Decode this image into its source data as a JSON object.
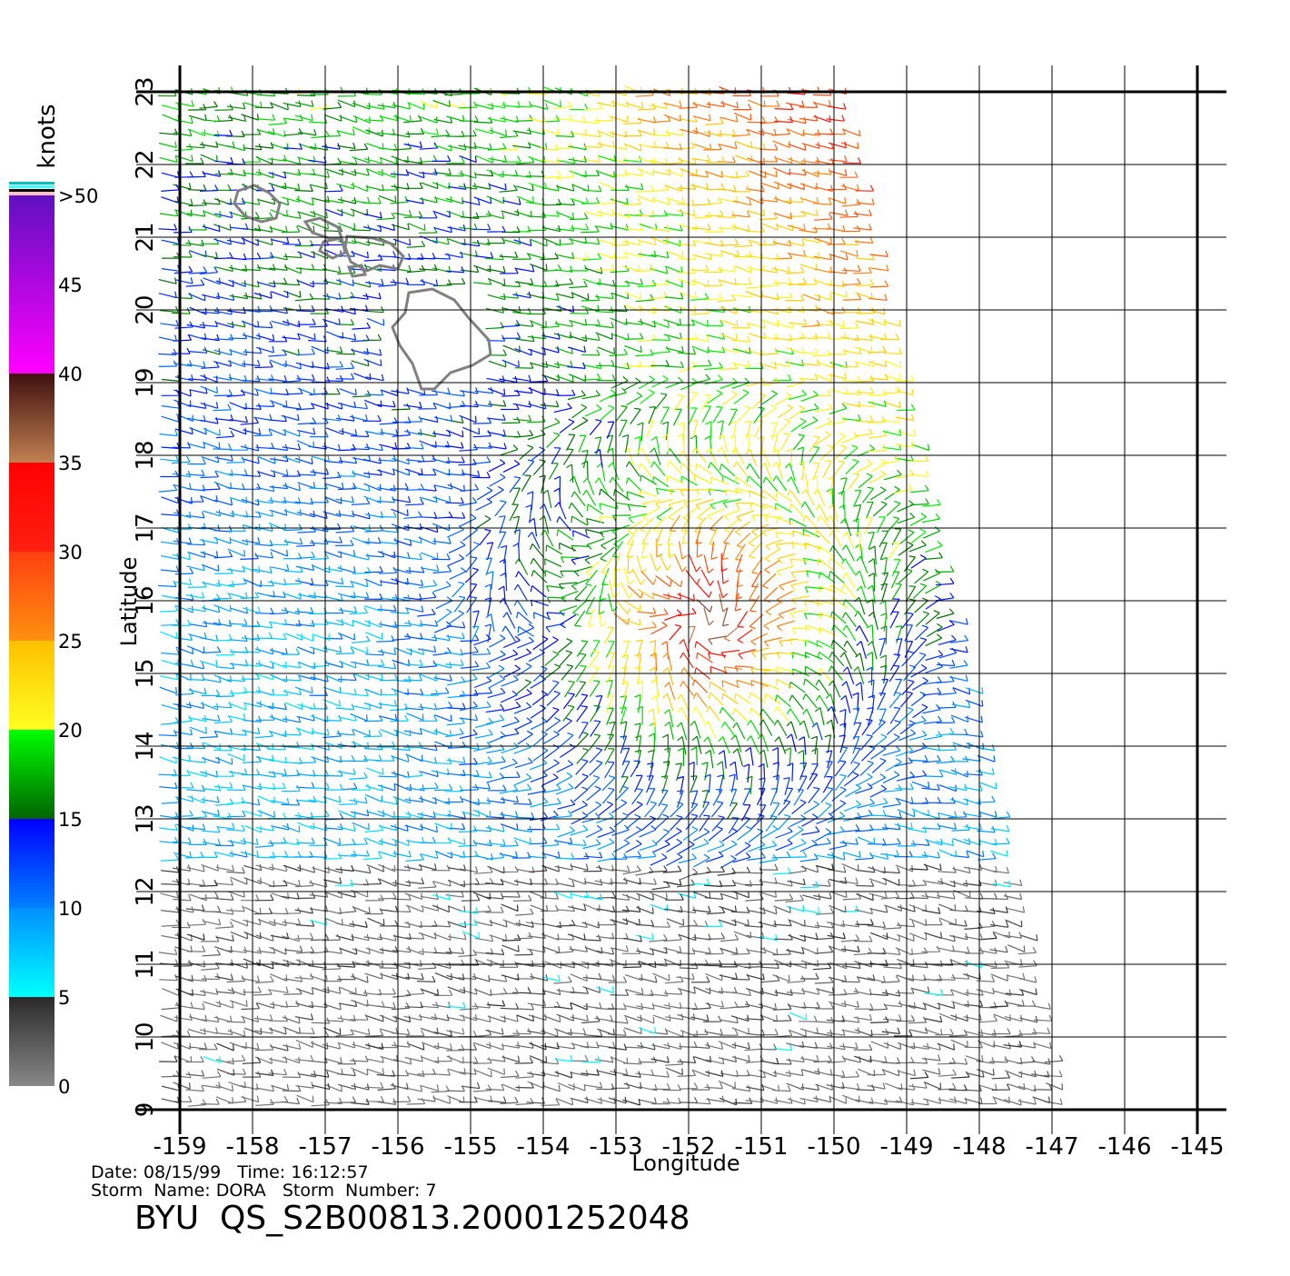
{
  "map": {
    "xaxis": {
      "label": "Longitude",
      "lim": [
        -159,
        -145
      ],
      "ticks": [
        -159,
        -158,
        -157,
        -156,
        -155,
        -154,
        -153,
        -152,
        -151,
        -150,
        -149,
        -148,
        -147,
        -146,
        -145
      ]
    },
    "yaxis": {
      "label": "Latitude",
      "lim": [
        9,
        23
      ],
      "ticks": [
        9,
        10,
        11,
        12,
        13,
        14,
        15,
        16,
        17,
        18,
        19,
        20,
        21,
        22,
        23
      ]
    },
    "colorbar": {
      "title": "knots",
      "lim": [
        0,
        50
      ],
      "ticks": [
        0,
        5,
        10,
        15,
        20,
        25,
        30,
        35,
        40,
        45,
        {
          "value": 50,
          "label": ">50"
        }
      ],
      "bands": [
        {
          "range": [
            0,
            5
          ],
          "colors": [
            "#888888",
            "#2a2a2a"
          ]
        },
        {
          "range": [
            5,
            10
          ],
          "colors": [
            "#00ffff",
            "#0090ff"
          ]
        },
        {
          "range": [
            10,
            15
          ],
          "colors": [
            "#0080ff",
            "#0000ff"
          ]
        },
        {
          "range": [
            15,
            20
          ],
          "colors": [
            "#006400",
            "#00ff00"
          ]
        },
        {
          "range": [
            20,
            25
          ],
          "colors": [
            "#ffff20",
            "#ffc000"
          ]
        },
        {
          "range": [
            25,
            30
          ],
          "colors": [
            "#ff9010",
            "#ff4010"
          ]
        },
        {
          "range": [
            30,
            35
          ],
          "colors": [
            "#ff2010",
            "#ff0000"
          ]
        },
        {
          "range": [
            35,
            40
          ],
          "colors": [
            "#c08050",
            "#401010"
          ]
        },
        {
          "range": [
            40,
            50
          ],
          "colors": [
            "#ff00ff",
            "#6010c0"
          ]
        }
      ]
    },
    "footer": {
      "line1": "Date: 08/15/99   Time: 16:12:57",
      "line2": "Storm  Name: DORA   Storm  Number: 7",
      "id": "BYU  QS_S2B00813.20001252048"
    }
  }
}
